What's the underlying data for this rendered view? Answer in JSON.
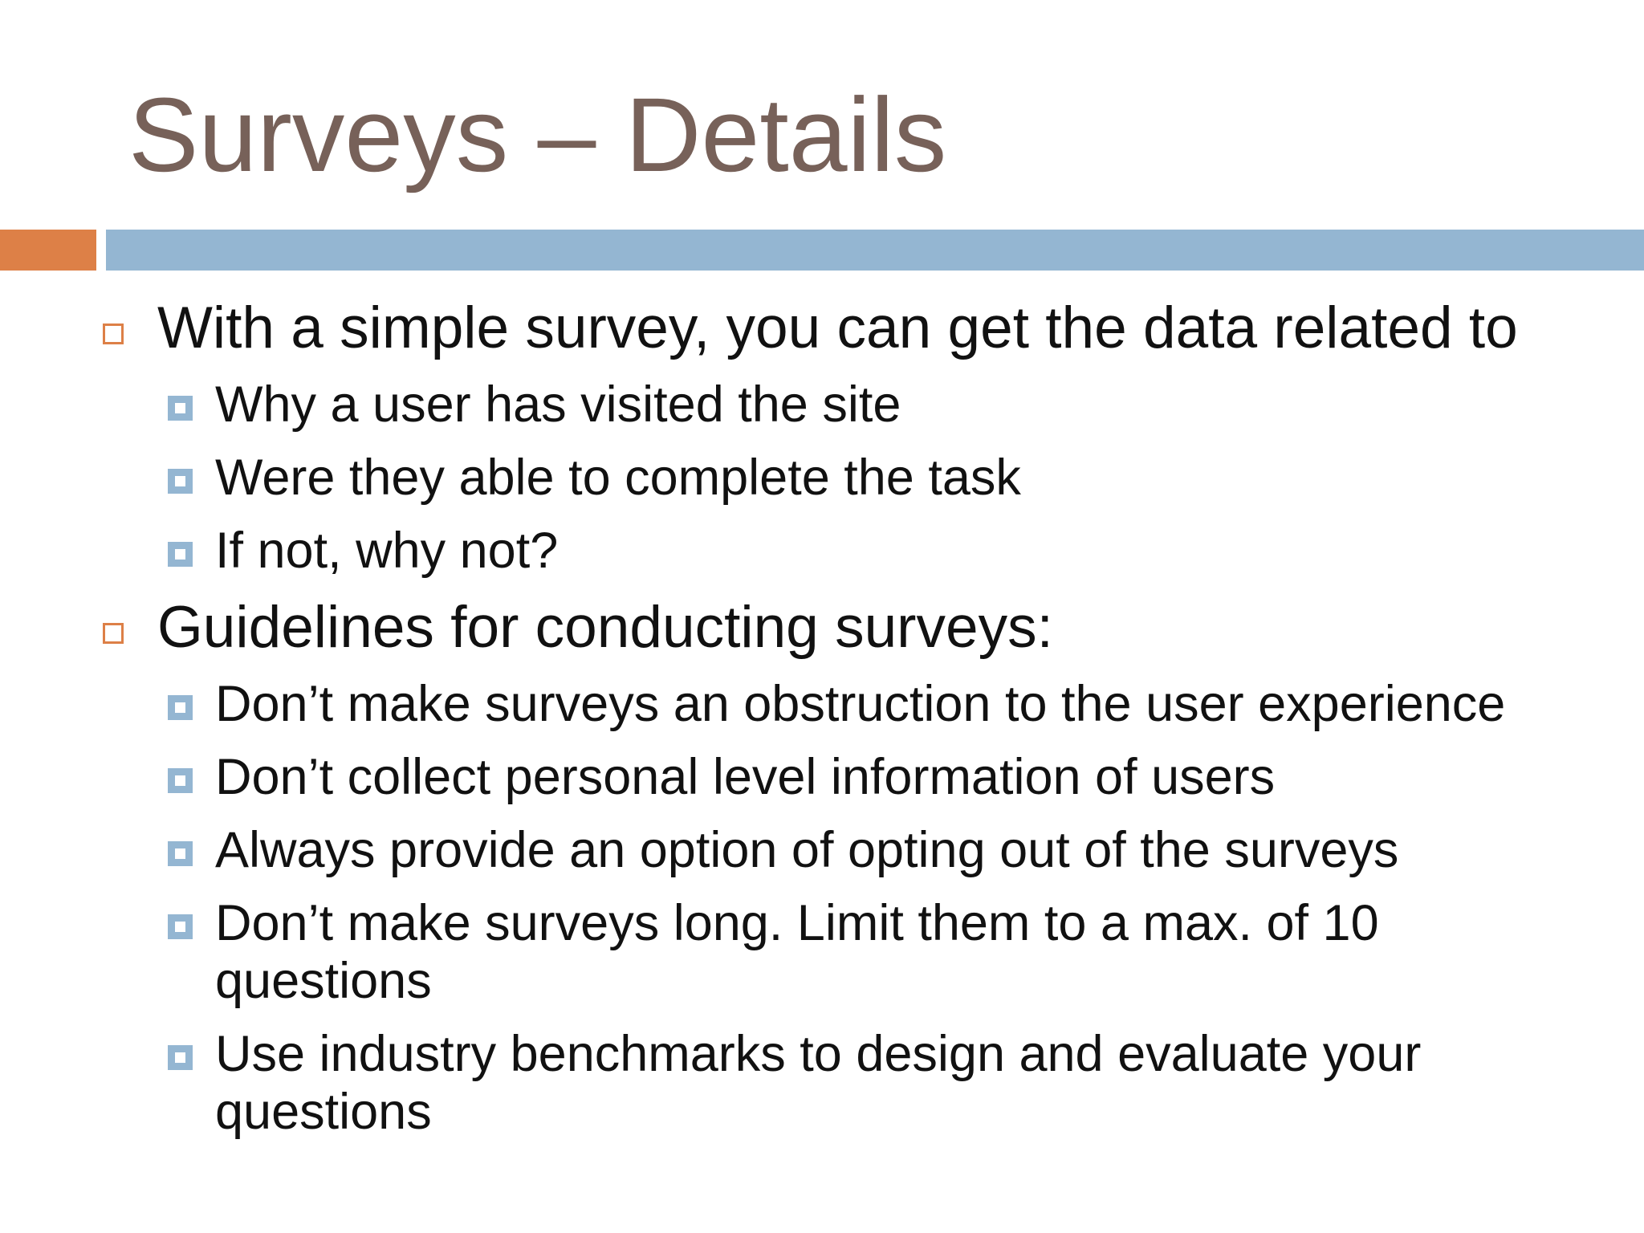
{
  "title": "Surveys – Details",
  "bullets": [
    {
      "text": "With a simple survey, you can get the data related to",
      "items": [
        "Why a user has visited the site",
        "Were they able to complete the task",
        "If not, why not?"
      ]
    },
    {
      "text": "Guidelines for conducting surveys:",
      "items": [
        "Don’t make surveys an obstruction to the user experience",
        "Don’t collect personal level information of users",
        "Always provide an option of opting out of the surveys",
        "Don’t make surveys long. Limit them to a max. of 10 questions",
        "Use industry benchmarks to design and evaluate your questions"
      ]
    }
  ]
}
